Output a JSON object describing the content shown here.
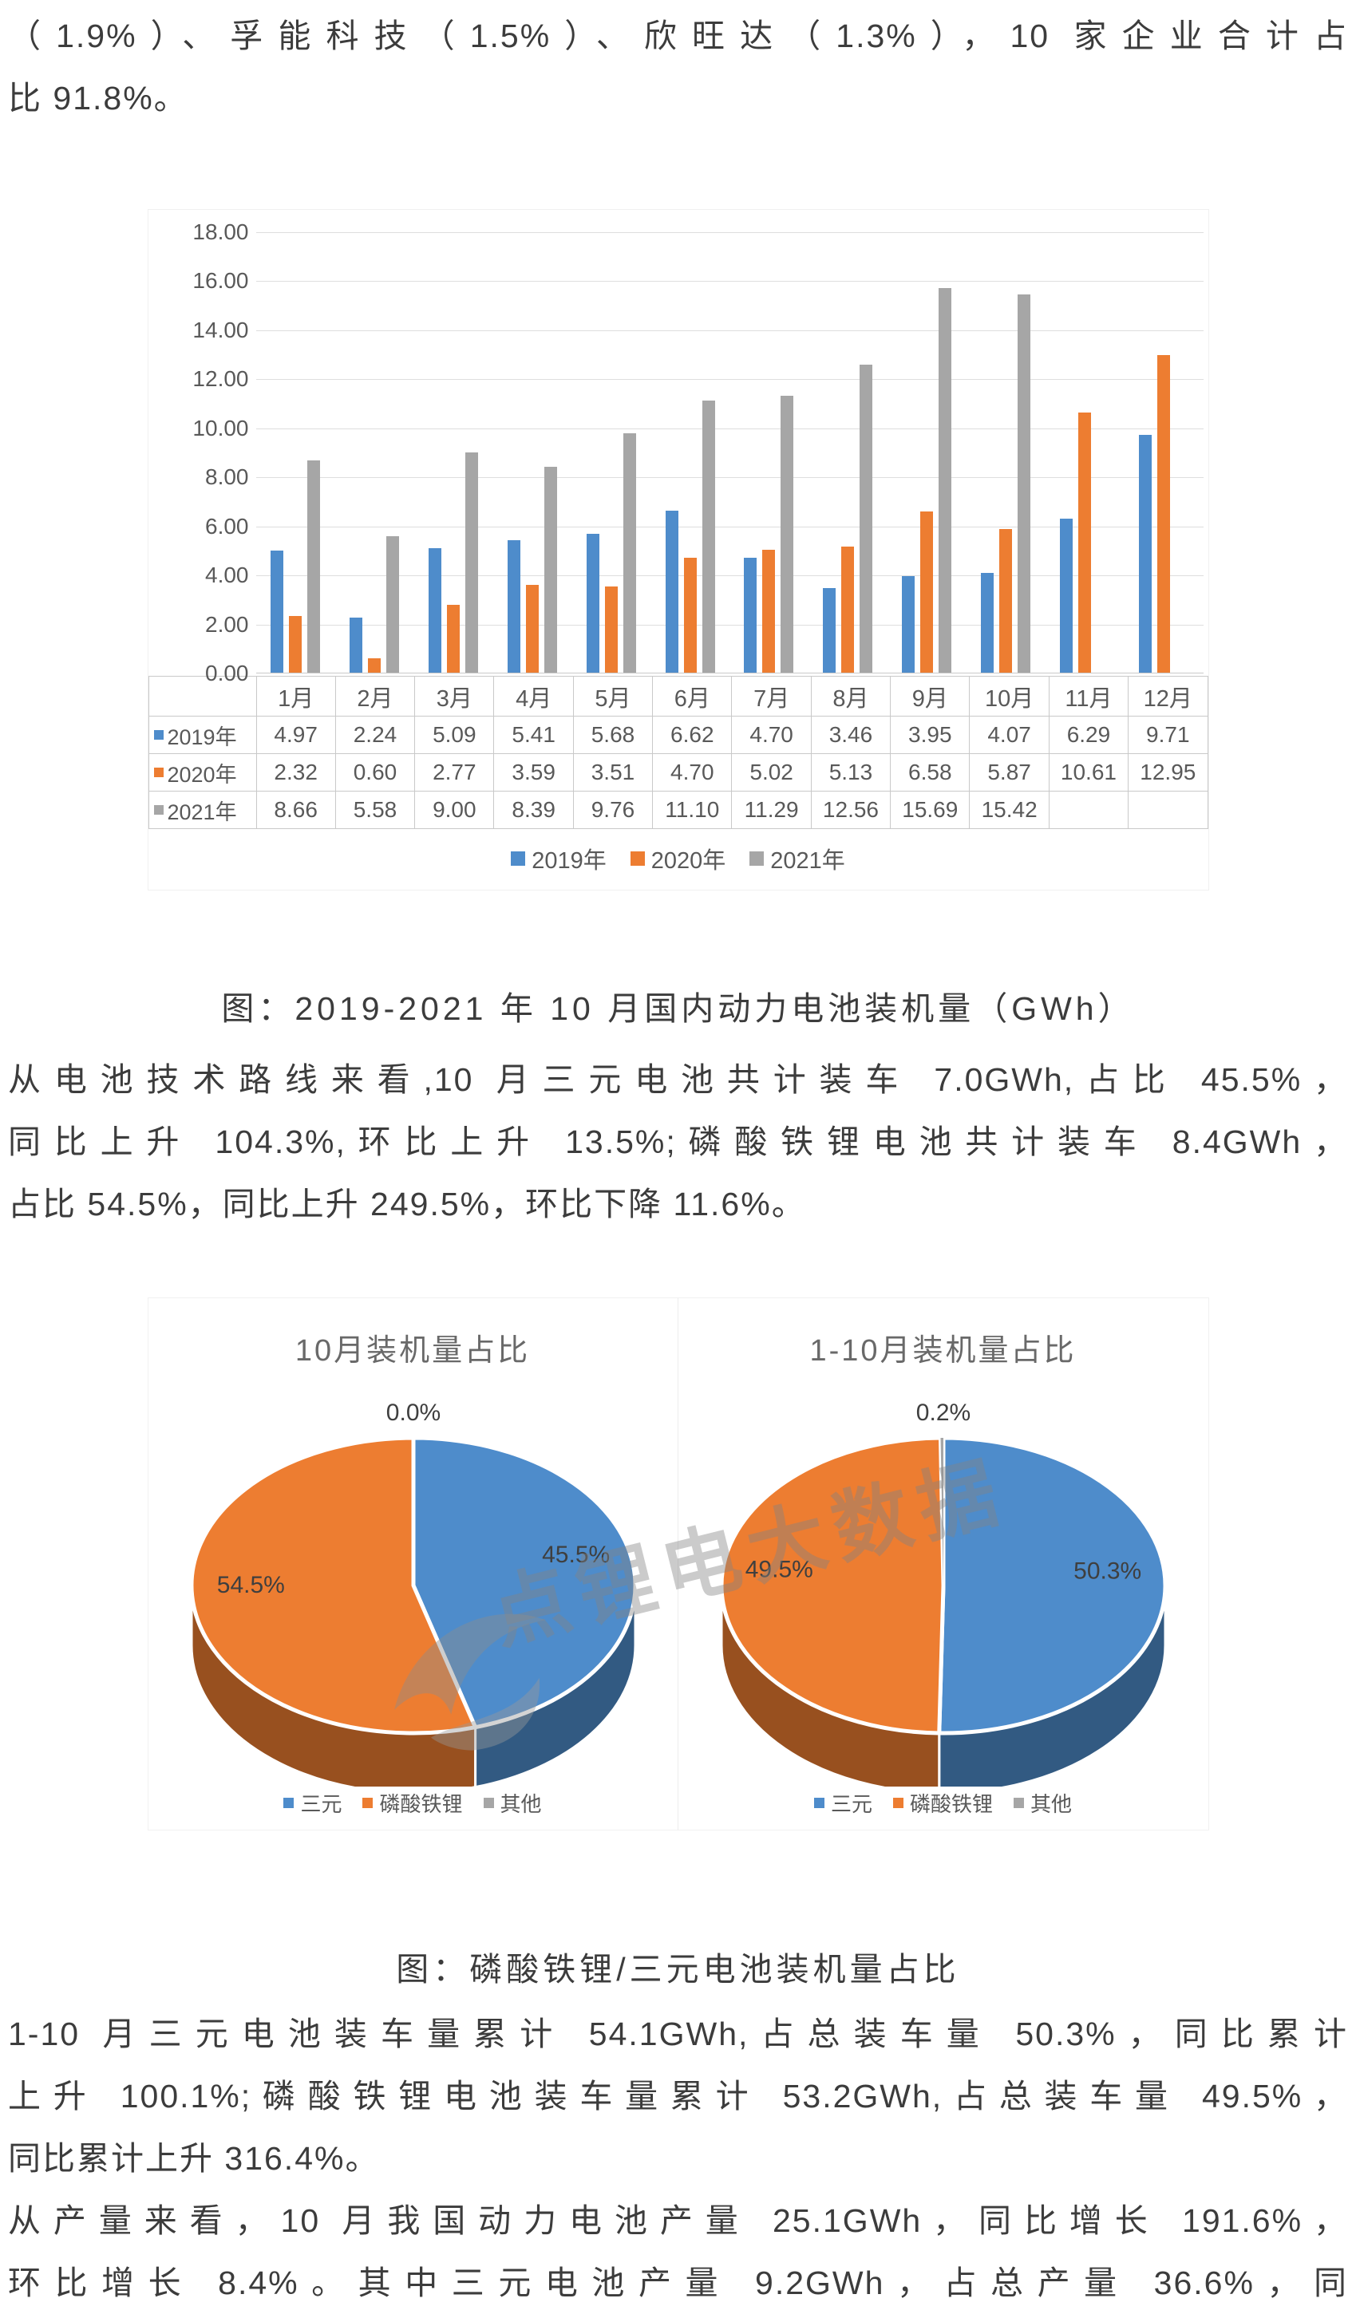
{
  "paragraphs": {
    "top": {
      "lines": [
        "（1.9%）、孚能科技（1.5%）、欣旺达（1.3%），10 家企业合计占",
        "比 91.8%。"
      ],
      "justify_last": false
    },
    "tech_route": {
      "lines": [
        "从电池技术路线来看,10 月三元电池共计装车 7.0GWh,占比 45.5%，",
        "同比上升 104.3%,环比上升 13.5%;磷酸铁锂电池共计装车 8.4GWh，",
        "占比 54.5%，同比上升 249.5%，环比下降 11.6%。"
      ],
      "justify_last": false
    },
    "cumulative": {
      "lines": [
        "1-10 月三元电池装车量累计 54.1GWh,占总装车量 50.3%，同比累计",
        "上升 100.1%;磷酸铁锂电池装车量累计 53.2GWh,占总装车量 49.5%，",
        "同比累计上升 316.4%。"
      ],
      "justify_last": false
    },
    "production": {
      "lines": [
        "从产量来看，10 月我国动力电池产量 25.1GWh，同比增长 191.6%，",
        "环比增长 8.4%。其中三元电池产量 9.2GWh，占总产量 36.6%，同"
      ],
      "justify_last": true
    }
  },
  "captions": {
    "bar_chart": "图：2019-2021 年 10 月国内动力电池装机量（GWh）",
    "pie_chart": "图：磷酸铁锂/三元电池装机量占比"
  },
  "chart_data": [
    {
      "type": "bar",
      "title": "2019-2021年10月国内动力电池装机量（GWh）",
      "categories": [
        "1月",
        "2月",
        "3月",
        "4月",
        "5月",
        "6月",
        "7月",
        "8月",
        "9月",
        "10月",
        "11月",
        "12月"
      ],
      "series": [
        {
          "name": "2019年",
          "color": "#4E8CCB",
          "values": [
            4.97,
            2.24,
            5.09,
            5.41,
            5.68,
            6.62,
            4.7,
            3.46,
            3.95,
            4.07,
            6.29,
            9.71
          ]
        },
        {
          "name": "2020年",
          "color": "#ED7D31",
          "values": [
            2.32,
            0.6,
            2.77,
            3.59,
            3.51,
            4.7,
            5.02,
            5.13,
            6.58,
            5.87,
            10.61,
            12.95
          ]
        },
        {
          "name": "2021年",
          "color": "#A6A6A6",
          "values": [
            8.66,
            5.58,
            9.0,
            8.39,
            9.76,
            11.1,
            11.29,
            12.56,
            15.69,
            15.42,
            null,
            null
          ]
        }
      ],
      "ylim": [
        0,
        18
      ],
      "ytick_step": 2,
      "grid": true,
      "legend_position": "bottom",
      "data_table": true
    },
    {
      "type": "pie",
      "title": "10月装机量占比",
      "series": [
        {
          "name": "三元",
          "value": 45.5,
          "label": "45.5%",
          "color": "#4E8CCB"
        },
        {
          "name": "磷酸铁锂",
          "value": 54.5,
          "label": "54.5%",
          "color": "#ED7D31"
        },
        {
          "name": "其他",
          "value": 0.0,
          "label": "0.0%",
          "color": "#A6A6A6"
        }
      ],
      "legend_position": "bottom"
    },
    {
      "type": "pie",
      "title": "1-10月装机量占比",
      "series": [
        {
          "name": "三元",
          "value": 50.3,
          "label": "50.3%",
          "color": "#4E8CCB"
        },
        {
          "name": "磷酸铁锂",
          "value": 49.5,
          "label": "49.5%",
          "color": "#ED7D31"
        },
        {
          "name": "其他",
          "value": 0.2,
          "label": "0.2%",
          "color": "#A6A6A6"
        }
      ],
      "legend_position": "bottom"
    }
  ],
  "watermark": {
    "text": "点锂电大数据"
  }
}
